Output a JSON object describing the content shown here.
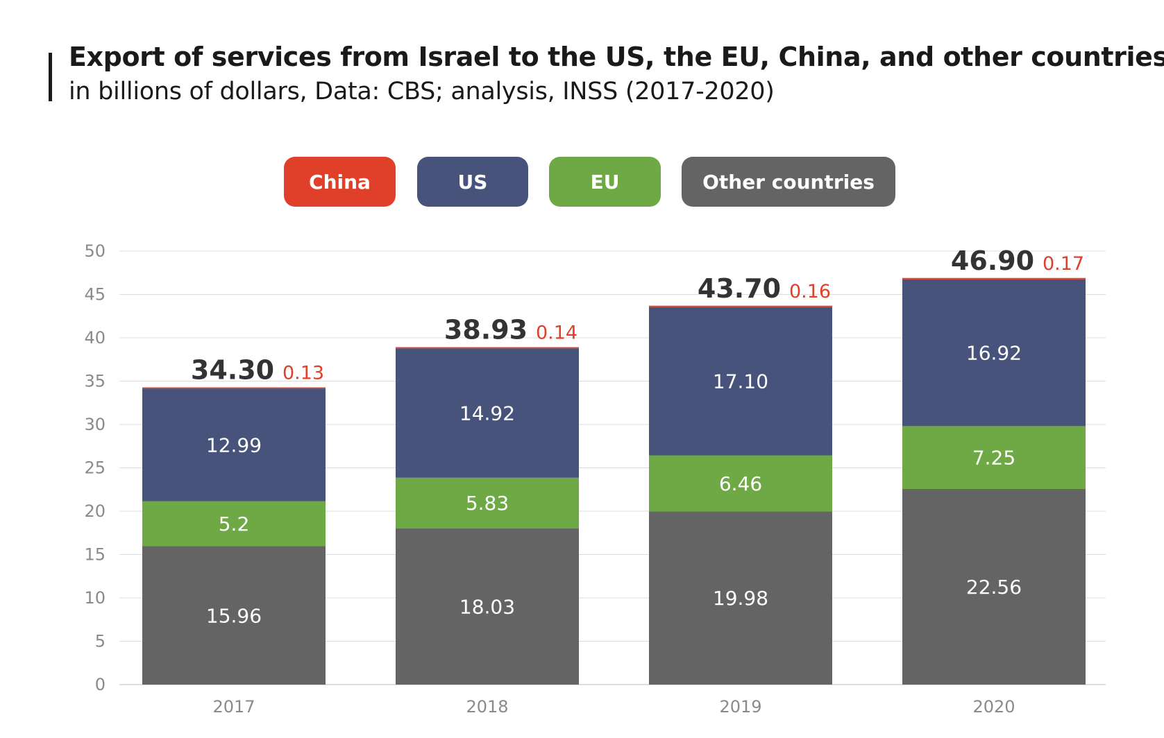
{
  "header": {
    "title": "Export of services from Israel to the US, the EU, China, and other countries",
    "subtitle": "in billions of dollars, Data: CBS; analysis, INSS (2017-2020)"
  },
  "legend": [
    {
      "label": "China",
      "color": "#e0402a"
    },
    {
      "label": "US",
      "color": "#47537a"
    },
    {
      "label": "EU",
      "color": "#6ea945"
    },
    {
      "label": "Other countries",
      "color": "#646464"
    }
  ],
  "chart_data": {
    "type": "bar",
    "stacked": true,
    "categories": [
      "2017",
      "2018",
      "2019",
      "2020"
    ],
    "series": [
      {
        "name": "Other countries",
        "color": "#646464",
        "values": [
          15.96,
          18.03,
          19.98,
          22.56
        ],
        "labels": [
          "15.96",
          "18.03",
          "19.98",
          "22.56"
        ]
      },
      {
        "name": "EU",
        "color": "#6ea945",
        "values": [
          5.2,
          5.83,
          6.46,
          7.25
        ],
        "labels": [
          "5.2",
          "5.83",
          "6.46",
          "7.25"
        ]
      },
      {
        "name": "US",
        "color": "#47537a",
        "values": [
          12.99,
          14.92,
          17.1,
          16.92
        ],
        "labels": [
          "12.99",
          "14.92",
          "17.10",
          "16.92"
        ]
      },
      {
        "name": "China",
        "color": "#e0402a",
        "values": [
          0.13,
          0.14,
          0.16,
          0.17
        ],
        "labels": [
          "0.13",
          "0.14",
          "0.16",
          "0.17"
        ]
      }
    ],
    "totals": [
      "34.30",
      "38.93",
      "43.70",
      "46.90"
    ],
    "ylim": [
      0,
      50
    ],
    "yticks": [
      "0",
      "5",
      "10",
      "15",
      "20",
      "25",
      "30",
      "35",
      "40",
      "45",
      "50"
    ],
    "grid": true,
    "legend_position": "top-center"
  }
}
